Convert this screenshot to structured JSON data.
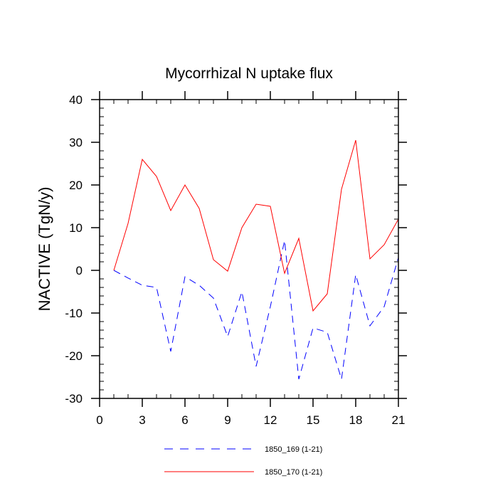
{
  "chart_data": {
    "type": "line",
    "title": "Mycorrhizal N uptake flux",
    "xlabel": "",
    "ylabel": "NACTIVE  (TgN/y)",
    "xlim": [
      0,
      21
    ],
    "ylim": [
      -30,
      40
    ],
    "x_ticks": [
      0,
      3,
      6,
      9,
      12,
      15,
      18,
      21
    ],
    "y_ticks": [
      -30,
      -20,
      -10,
      0,
      10,
      20,
      30,
      40
    ],
    "x_tick_labels": [
      "0",
      "3",
      "6",
      "9",
      "12",
      "15",
      "18",
      "21"
    ],
    "y_tick_labels": [
      "-30",
      "-20",
      "-10",
      "0",
      "10",
      "20",
      "30",
      "40"
    ],
    "grid": false,
    "legend_placement": "bottom",
    "x": [
      1,
      2,
      3,
      4,
      5,
      6,
      7,
      8,
      9,
      10,
      11,
      12,
      13,
      14,
      15,
      16,
      17,
      18,
      19,
      20,
      21
    ],
    "series": [
      {
        "name": "1850_169 (1-21)",
        "color": "#0000ff",
        "dash": "dashed",
        "values": [
          0,
          -1.8,
          -3.5,
          -4,
          -19,
          -1.5,
          -3.5,
          -6.5,
          -15.5,
          -5,
          -22.5,
          -8.5,
          7,
          -25.5,
          -13.5,
          -14.5,
          -25.5,
          -1,
          -13,
          -8.5,
          3
        ]
      },
      {
        "name": "1850_170 (1-21)",
        "color": "#ff0000",
        "dash": "solid",
        "values": [
          0,
          11,
          26,
          22,
          14,
          20,
          14.5,
          2.5,
          -0.2,
          10,
          15.5,
          15,
          -0.7,
          7.5,
          -9.5,
          -5.5,
          19,
          30.5,
          2.7,
          6,
          12
        ]
      }
    ]
  }
}
